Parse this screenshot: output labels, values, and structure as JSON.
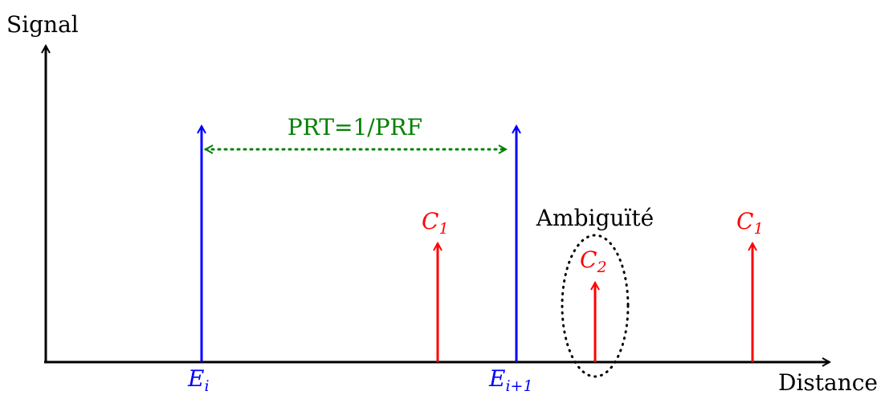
{
  "axes": {
    "y_label": "Signal",
    "x_label": "Distance"
  },
  "pulses": {
    "emit_1": {
      "letter": "E",
      "subscript": "i",
      "color": "#0000ff"
    },
    "emit_2": {
      "letter": "E",
      "subscript": "i+1",
      "color": "#0000ff"
    }
  },
  "echoes": {
    "echo_1": {
      "letter": "C",
      "subscript": "1",
      "color": "#ff0000"
    },
    "echo_2": {
      "letter": "C",
      "subscript": "2",
      "color": "#ff0000"
    },
    "echo_3": {
      "letter": "C",
      "subscript": "1",
      "color": "#ff0000"
    }
  },
  "period": {
    "label": "PRT=1/PRF",
    "color": "#008000"
  },
  "ambiguity": {
    "label": "Ambiguïté"
  }
}
